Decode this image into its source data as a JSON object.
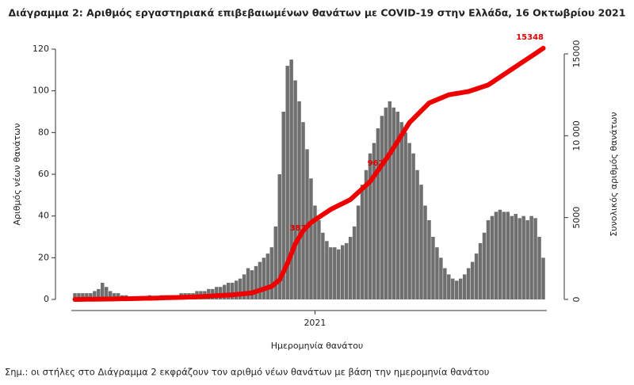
{
  "chart_data": {
    "type": "bar",
    "title": "Διάγραμμα 2: Αριθμός εργαστηριακά επιβεβαιωμένων θανάτων με COVID-19 στην Ελλάδα, 16 Οκτωβρίου 2021",
    "ylabel": "Αριθμός νέων θανάτων",
    "y2label": "Συνολικός αριθμός θανάτων",
    "xlabel": "Ημερομηνία θανάτου",
    "note": "Σημ.: οι στήλες στο Διάγραμμα 2 εκφράζουν τον αριθμό νέων θανάτων με βάση την ημερομηνία θανάτου",
    "categories": [
      null,
      null,
      null,
      null,
      null,
      null,
      null,
      null,
      null,
      null,
      null,
      null,
      null,
      null,
      null,
      null,
      null,
      null,
      null,
      null,
      null,
      null,
      null,
      null,
      null,
      null,
      null,
      null,
      null,
      null,
      null,
      null,
      null,
      null,
      null,
      null,
      null,
      null,
      null,
      null,
      null,
      null,
      null,
      null,
      null,
      null,
      null,
      null,
      null,
      null,
      null,
      null,
      null,
      null,
      null,
      null,
      null,
      null,
      null,
      null,
      null,
      "2021",
      null,
      null,
      null,
      null,
      null,
      null,
      null,
      null,
      null,
      null,
      null,
      null,
      null,
      null,
      null,
      null,
      null,
      null,
      null,
      null,
      null,
      null,
      null,
      null,
      null,
      null,
      null,
      null,
      null,
      null,
      null,
      null,
      null,
      null,
      null,
      null,
      null,
      null,
      null,
      null,
      null,
      null,
      null,
      null,
      null,
      null,
      null,
      null,
      null,
      null,
      null,
      null,
      null,
      null,
      null,
      null,
      null,
      null
    ],
    "series": [
      {
        "type": "bar",
        "color": "#6f6f6f",
        "values": [
          3,
          3,
          3,
          3,
          3,
          4,
          5,
          8,
          6,
          4,
          3,
          3,
          2,
          2,
          1,
          1,
          1,
          1,
          1,
          2,
          1,
          1,
          2,
          2,
          2,
          2,
          2,
          3,
          3,
          3,
          3,
          4,
          4,
          4,
          5,
          5,
          6,
          6,
          7,
          8,
          8,
          9,
          10,
          12,
          15,
          14,
          16,
          18,
          20,
          22,
          25,
          35,
          60,
          90,
          112,
          115,
          105,
          95,
          85,
          72,
          58,
          45,
          38,
          32,
          28,
          25,
          25,
          24,
          26,
          27,
          30,
          35,
          45,
          55,
          62,
          70,
          75,
          82,
          88,
          92,
          95,
          92,
          90,
          85,
          80,
          75,
          70,
          62,
          55,
          45,
          38,
          30,
          25,
          20,
          15,
          12,
          10,
          9,
          10,
          12,
          15,
          18,
          22,
          27,
          32,
          38,
          40,
          42,
          43,
          42,
          42,
          40,
          41,
          39,
          40,
          38,
          40,
          39,
          30,
          20
        ]
      },
      {
        "type": "line",
        "axis": "y2",
        "color": "#ee0000",
        "values": [
          0,
          3,
          6,
          9,
          12,
          15,
          18,
          21,
          24,
          27,
          30,
          35,
          40,
          45,
          50,
          55,
          60,
          65,
          70,
          75,
          80,
          87,
          94,
          101,
          108,
          115,
          122,
          129,
          136,
          143,
          150,
          163,
          176,
          189,
          202,
          215,
          228,
          241,
          254,
          267,
          280,
          304,
          328,
          352,
          376,
          400,
          480,
          560,
          640,
          720,
          800,
          1000,
          1200,
          1700,
          2200,
          2800,
          3400,
          3800,
          4200,
          4450,
          4700,
          4860,
          5020,
          5180,
          5340,
          5500,
          5620,
          5740,
          5860,
          5980,
          6100,
          6320,
          6540,
          6760,
          6980,
          7200,
          7540,
          7880,
          8220,
          8560,
          8900,
          9280,
          9660,
          10040,
          10420,
          10800,
          11040,
          11280,
          11520,
          11760,
          12000,
          12100,
          12200,
          12300,
          12400,
          12500,
          12540,
          12580,
          12620,
          12660,
          12700,
          12780,
          12860,
          12940,
          13020,
          13100,
          13260,
          13420,
          13580,
          13740,
          13900,
          14060,
          14220,
          14380,
          14540,
          14700,
          14860,
          15020,
          15180,
          15348
        ]
      }
    ],
    "annotations": [
      {
        "text": "387"
      },
      {
        "text": "962"
      },
      {
        "text": "15348"
      }
    ],
    "ylim": [
      0,
      120
    ],
    "yticks": [
      0,
      20,
      40,
      60,
      80,
      100,
      120
    ],
    "y2lim": [
      0,
      15290
    ],
    "y2ticks": [
      0,
      5000,
      {
        "value": 10000,
        "label": "10 000"
      },
      15000
    ],
    "grid": false
  }
}
